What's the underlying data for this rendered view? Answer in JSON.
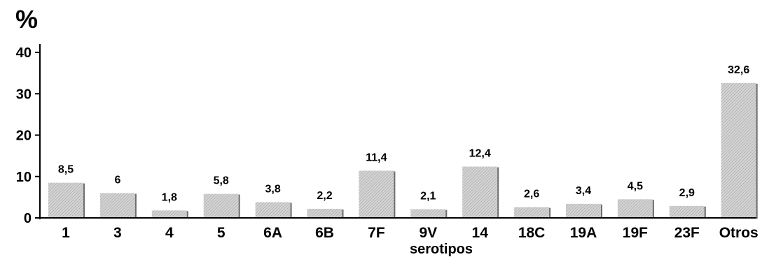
{
  "chart_data": {
    "type": "bar",
    "unit_label": "%",
    "xlabel": "serotipos",
    "categories": [
      "1",
      "3",
      "4",
      "5",
      "6A",
      "6B",
      "7F",
      "9V",
      "14",
      "18C",
      "19A",
      "19F",
      "23F",
      "Otros"
    ],
    "values": [
      8.5,
      6,
      1.8,
      5.8,
      3.8,
      2.2,
      11.4,
      2.1,
      12.4,
      2.6,
      3.4,
      4.5,
      2.9,
      32.6
    ],
    "value_labels": [
      "8,5",
      "6",
      "1,8",
      "5,8",
      "3,8",
      "2,2",
      "11,4",
      "2,1",
      "12,4",
      "2,6",
      "3,4",
      "4,5",
      "2,9",
      "32,6"
    ],
    "yticks": [
      "0",
      "10",
      "20",
      "30",
      "40"
    ],
    "ylim": [
      0,
      40
    ],
    "grid": false,
    "legend": "none",
    "bar_color": "#c8c8c8"
  }
}
